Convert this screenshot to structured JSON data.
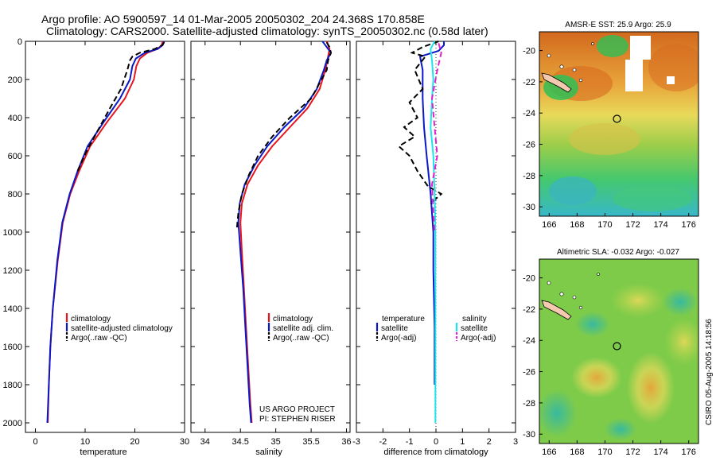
{
  "header": {
    "line1": "Argo profile: AO 5900597_14 01-Mar-2005 20050302_204 24.368S 170.858E",
    "line2": "Climatology: CARS2000. Satellite-adjusted climatology: synTS_20050302.nc (0.58d later)"
  },
  "side_label": "CSIRO 05-Aug-2005 14:18:56",
  "colors": {
    "climatology": "#e8141e",
    "satellite": "#0a18c8",
    "argo": "#000000",
    "salinity_satellite": "#19e6ee",
    "salinity_argo": "#e61ecd"
  },
  "chart_data": [
    {
      "type": "line",
      "xlabel": "temperature",
      "xlim": [
        -2,
        30
      ],
      "ylim": [
        2050,
        0
      ],
      "x_ticks": [
        "0",
        "10",
        "20",
        "30"
      ],
      "y_ticks": [
        "0",
        "200",
        "400",
        "600",
        "800",
        "1000",
        "1200",
        "1400",
        "1600",
        "1800",
        "2000"
      ],
      "legend": [
        "climatology",
        "satellite-adjusted climatology",
        "Argo(..raw -QC)"
      ],
      "series": [
        {
          "name": "climatology",
          "color_key": "climatology",
          "style": "solid",
          "points": [
            [
              25.6,
              0
            ],
            [
              25.4,
              20
            ],
            [
              24.5,
              40
            ],
            [
              22.5,
              60
            ],
            [
              21.0,
              90
            ],
            [
              20.3,
              130
            ],
            [
              19.8,
              200
            ],
            [
              18.0,
              300
            ],
            [
              14.5,
              420
            ],
            [
              11.0,
              550
            ],
            [
              8.8,
              680
            ],
            [
              7.0,
              800
            ],
            [
              5.5,
              950
            ],
            [
              4.5,
              1150
            ],
            [
              3.5,
              1400
            ],
            [
              3.0,
              1600
            ],
            [
              2.7,
              1800
            ],
            [
              2.5,
              2000
            ]
          ]
        },
        {
          "name": "satellite-adjusted climatology",
          "color_key": "satellite",
          "style": "solid",
          "points": [
            [
              25.9,
              0
            ],
            [
              25.6,
              20
            ],
            [
              24.6,
              40
            ],
            [
              22.0,
              60
            ],
            [
              20.2,
              90
            ],
            [
              19.5,
              130
            ],
            [
              19.0,
              200
            ],
            [
              17.0,
              300
            ],
            [
              13.8,
              420
            ],
            [
              10.5,
              550
            ],
            [
              8.5,
              680
            ],
            [
              6.9,
              800
            ],
            [
              5.4,
              950
            ],
            [
              4.4,
              1150
            ],
            [
              3.5,
              1400
            ],
            [
              3.0,
              1600
            ],
            [
              2.7,
              1800
            ],
            [
              2.4,
              2000
            ]
          ]
        },
        {
          "name": "Argo(..raw -QC)",
          "color_key": "argo",
          "style": "dashed",
          "points": [
            [
              25.9,
              5
            ],
            [
              25.5,
              20
            ],
            [
              24.0,
              40
            ],
            [
              21.0,
              60
            ],
            [
              19.5,
              80
            ],
            [
              19.0,
              100
            ],
            [
              18.5,
              150
            ],
            [
              17.2,
              250
            ],
            [
              15.0,
              350
            ],
            [
              12.5,
              470
            ],
            [
              10.2,
              580
            ],
            [
              8.5,
              680
            ]
          ]
        }
      ]
    },
    {
      "type": "line",
      "xlabel": "salinity",
      "xlim": [
        33.8,
        36.05
      ],
      "ylim": [
        2050,
        0
      ],
      "x_ticks": [
        "34",
        "34.5",
        "35",
        "35.5",
        "36"
      ],
      "legend": [
        "climatology",
        "satellite adj. clim.",
        "Argo(..raw -QC)"
      ],
      "annotation": [
        "US ARGO PROJECT",
        "PI: STEPHEN RISER"
      ],
      "series": [
        {
          "name": "climatology",
          "color_key": "climatology",
          "style": "solid",
          "points": [
            [
              35.72,
              0
            ],
            [
              35.76,
              40
            ],
            [
              35.74,
              80
            ],
            [
              35.7,
              150
            ],
            [
              35.62,
              250
            ],
            [
              35.45,
              350
            ],
            [
              35.2,
              450
            ],
            [
              34.95,
              550
            ],
            [
              34.75,
              650
            ],
            [
              34.6,
              750
            ],
            [
              34.52,
              850
            ],
            [
              34.5,
              950
            ],
            [
              34.52,
              1100
            ],
            [
              34.55,
              1300
            ],
            [
              34.58,
              1500
            ],
            [
              34.61,
              1700
            ],
            [
              34.64,
              1900
            ],
            [
              34.66,
              2000
            ]
          ]
        },
        {
          "name": "satellite adj. clim.",
          "color_key": "satellite",
          "style": "solid",
          "points": [
            [
              35.66,
              0
            ],
            [
              35.72,
              30
            ],
            [
              35.78,
              60
            ],
            [
              35.72,
              100
            ],
            [
              35.68,
              150
            ],
            [
              35.58,
              250
            ],
            [
              35.4,
              350
            ],
            [
              35.12,
              450
            ],
            [
              34.88,
              550
            ],
            [
              34.7,
              650
            ],
            [
              34.56,
              750
            ],
            [
              34.49,
              850
            ],
            [
              34.47,
              950
            ],
            [
              34.5,
              1100
            ],
            [
              34.54,
              1300
            ],
            [
              34.57,
              1500
            ],
            [
              34.6,
              1700
            ],
            [
              34.63,
              1900
            ],
            [
              34.65,
              2000
            ]
          ]
        },
        {
          "name": "Argo(..raw -QC)",
          "color_key": "argo",
          "style": "dashed",
          "points": [
            [
              35.72,
              5
            ],
            [
              35.76,
              30
            ],
            [
              35.78,
              60
            ],
            [
              35.74,
              100
            ],
            [
              35.72,
              150
            ],
            [
              35.5,
              300
            ],
            [
              35.2,
              400
            ],
            [
              34.95,
              500
            ],
            [
              34.75,
              600
            ],
            [
              34.62,
              700
            ],
            [
              34.52,
              800
            ],
            [
              34.47,
              900
            ],
            [
              34.45,
              980
            ]
          ]
        }
      ]
    },
    {
      "type": "line",
      "xlabel": "difference from climatology",
      "xlim": [
        -3,
        3
      ],
      "x_ticks": [
        "-3",
        "-2",
        "-1",
        "0",
        "1",
        "2",
        "3"
      ],
      "legend": [
        "temperature",
        "satellite",
        "Argo(-adj)",
        "salinity",
        "satellite",
        "Argo(-adj)"
      ],
      "series": [
        {
          "name": "temperature satellite",
          "color_key": "satellite",
          "style": "solid",
          "points": [
            [
              0.3,
              0
            ],
            [
              0.3,
              20
            ],
            [
              0.1,
              50
            ],
            [
              -0.6,
              80
            ],
            [
              -0.5,
              150
            ],
            [
              -0.5,
              300
            ],
            [
              -0.45,
              450
            ],
            [
              -0.35,
              600
            ],
            [
              -0.2,
              800
            ],
            [
              -0.1,
              1000
            ],
            [
              -0.1,
              1200
            ],
            [
              -0.05,
              1500
            ],
            [
              -0.05,
              1800
            ]
          ]
        },
        {
          "name": "temperature Argo(-adj)",
          "color_key": "argo",
          "style": "dashed",
          "points": [
            [
              0.1,
              0
            ],
            [
              -0.5,
              30
            ],
            [
              -0.9,
              60
            ],
            [
              -0.4,
              80
            ],
            [
              -0.8,
              150
            ],
            [
              -0.5,
              250
            ],
            [
              -1.0,
              320
            ],
            [
              -0.7,
              400
            ],
            [
              -1.2,
              450
            ],
            [
              -0.8,
              500
            ],
            [
              -1.4,
              550
            ],
            [
              -1.0,
              600
            ],
            [
              -0.7,
              680
            ],
            [
              -0.3,
              760
            ],
            [
              0.2,
              800
            ],
            [
              -0.2,
              850
            ]
          ]
        },
        {
          "name": "salinity satellite",
          "color_key": "salinity_satellite",
          "style": "solid",
          "points": [
            [
              -0.05,
              0
            ],
            [
              -0.2,
              40
            ],
            [
              -0.15,
              100
            ],
            [
              -0.1,
              200
            ],
            [
              -0.15,
              300
            ],
            [
              -0.2,
              450
            ],
            [
              -0.1,
              600
            ],
            [
              -0.05,
              800
            ],
            [
              -0.02,
              1000
            ],
            [
              -0.02,
              1300
            ],
            [
              -0.02,
              1700
            ],
            [
              -0.02,
              2000
            ]
          ]
        },
        {
          "name": "salinity Argo(-adj)",
          "color_key": "salinity_argo",
          "style": "dashed",
          "points": [
            [
              0.1,
              10
            ],
            [
              0.2,
              60
            ],
            [
              0.05,
              150
            ],
            [
              -0.15,
              300
            ],
            [
              -0.05,
              450
            ],
            [
              0.05,
              600
            ],
            [
              -0.15,
              750
            ],
            [
              -0.1,
              900
            ],
            [
              -0.05,
              1000
            ]
          ]
        }
      ]
    },
    {
      "type": "heatmap",
      "title": "AMSR-E SST: 25.9 Argo: 25.9",
      "x_ticks": [
        "166",
        "168",
        "170",
        "172",
        "174",
        "176"
      ],
      "y_ticks": [
        "-20",
        "-22",
        "-24",
        "-26",
        "-28",
        "-30"
      ],
      "xlim": [
        165.3,
        176.7
      ],
      "ylim": [
        -30.6,
        -18.8
      ],
      "marker": [
        170.858,
        -24.368
      ]
    },
    {
      "type": "heatmap",
      "title": "Altimetric SLA: -0.032 Argo: -0.027",
      "x_ticks": [
        "166",
        "168",
        "170",
        "172",
        "174",
        "176"
      ],
      "y_ticks": [
        "-20",
        "-22",
        "-24",
        "-26",
        "-28",
        "-30"
      ],
      "xlim": [
        165.3,
        176.7
      ],
      "ylim": [
        -30.6,
        -18.8
      ],
      "marker": [
        170.858,
        -24.368
      ]
    }
  ]
}
